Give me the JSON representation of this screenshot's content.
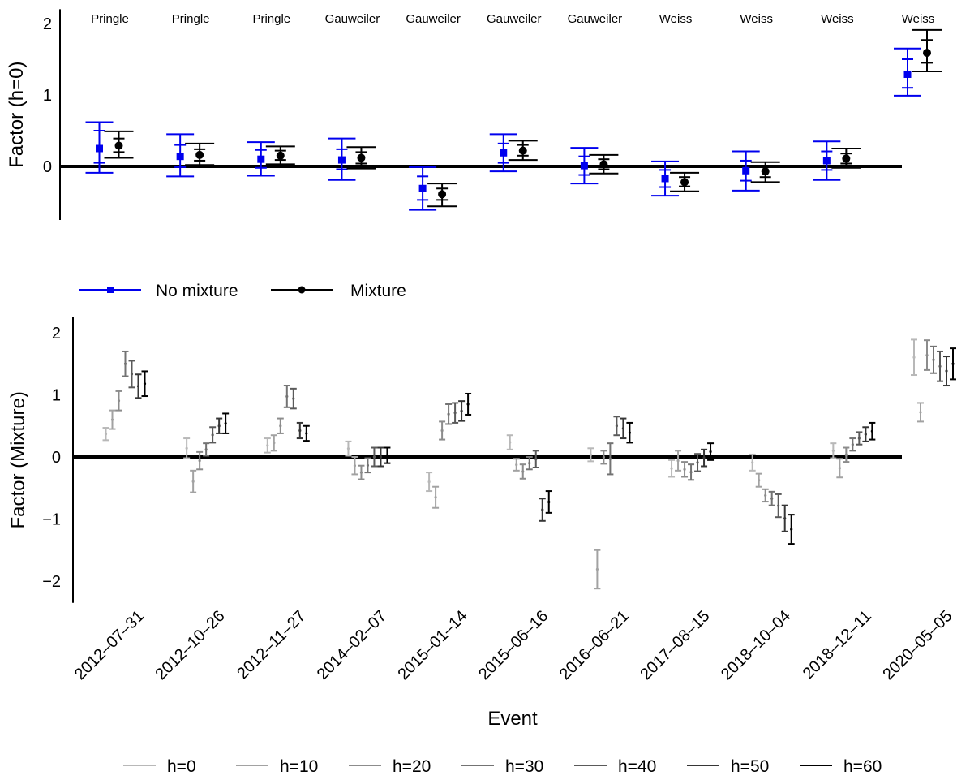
{
  "chart_data": [
    {
      "type": "errorbar",
      "ylabel": "Factor (h=0)",
      "ylim": [
        -0.75,
        2.2
      ],
      "yticks": [
        0,
        1,
        2
      ],
      "annotations": [
        "Pringle",
        "Pringle",
        "Pringle",
        "Gauweiler",
        "Gauweiler",
        "Gauweiler",
        "Gauweiler",
        "Weiss",
        "Weiss",
        "Weiss",
        "Weiss"
      ],
      "legend_placement": "bottom",
      "series": [
        {
          "name": "No mixture",
          "color": "#0000ee",
          "marker": "square",
          "points": [
            {
              "y": 0.25,
              "lo95": -0.09,
              "hi95": 0.62,
              "lo68": 0.05,
              "hi68": 0.5
            },
            {
              "y": 0.14,
              "lo95": -0.14,
              "hi95": 0.45,
              "lo68": -0.01,
              "hi68": 0.3
            },
            {
              "y": 0.1,
              "lo95": -0.13,
              "hi95": 0.34,
              "lo68": -0.02,
              "hi68": 0.23
            },
            {
              "y": 0.09,
              "lo95": -0.19,
              "hi95": 0.39,
              "lo68": -0.04,
              "hi68": 0.24
            },
            {
              "y": -0.31,
              "lo95": -0.61,
              "hi95": -0.01,
              "lo68": -0.47,
              "hi68": -0.14
            },
            {
              "y": 0.19,
              "lo95": -0.07,
              "hi95": 0.45,
              "lo68": 0.05,
              "hi68": 0.32
            },
            {
              "y": 0.01,
              "lo95": -0.24,
              "hi95": 0.26,
              "lo68": -0.12,
              "hi68": 0.14
            },
            {
              "y": -0.17,
              "lo95": -0.41,
              "hi95": 0.07,
              "lo68": -0.29,
              "hi68": -0.05
            },
            {
              "y": -0.06,
              "lo95": -0.34,
              "hi95": 0.21,
              "lo68": -0.2,
              "hi68": 0.08
            },
            {
              "y": 0.08,
              "lo95": -0.19,
              "hi95": 0.35,
              "lo68": -0.05,
              "hi68": 0.21
            },
            {
              "y": 1.29,
              "lo95": 0.99,
              "hi95": 1.65,
              "lo68": 1.1,
              "hi68": 1.5
            }
          ]
        },
        {
          "name": "Mixture",
          "color": "#000000",
          "marker": "circle",
          "points": [
            {
              "y": 0.29,
              "lo95": 0.12,
              "hi95": 0.49,
              "lo68": 0.2,
              "hi68": 0.39
            },
            {
              "y": 0.16,
              "lo95": 0.02,
              "hi95": 0.32,
              "lo68": 0.08,
              "hi68": 0.24
            },
            {
              "y": 0.15,
              "lo95": 0.03,
              "hi95": 0.28,
              "lo68": 0.09,
              "hi68": 0.22
            },
            {
              "y": 0.12,
              "lo95": -0.03,
              "hi95": 0.27,
              "lo68": 0.04,
              "hi68": 0.2
            },
            {
              "y": -0.39,
              "lo95": -0.56,
              "hi95": -0.24,
              "lo68": -0.47,
              "hi68": -0.31
            },
            {
              "y": 0.22,
              "lo95": 0.09,
              "hi95": 0.36,
              "lo68": 0.15,
              "hi68": 0.3
            },
            {
              "y": 0.03,
              "lo95": -0.1,
              "hi95": 0.16,
              "lo68": -0.04,
              "hi68": 0.1
            },
            {
              "y": -0.22,
              "lo95": -0.35,
              "hi95": -0.09,
              "lo68": -0.28,
              "hi68": -0.15
            },
            {
              "y": -0.07,
              "lo95": -0.22,
              "hi95": 0.06,
              "lo68": -0.15,
              "hi68": 0.0
            },
            {
              "y": 0.11,
              "lo95": -0.02,
              "hi95": 0.25,
              "lo68": 0.04,
              "hi68": 0.18
            },
            {
              "y": 1.59,
              "lo95": 1.33,
              "hi95": 1.91,
              "lo68": 1.45,
              "hi68": 1.77
            }
          ]
        }
      ]
    },
    {
      "type": "errorbar",
      "xlabel": "Event",
      "ylabel": "Factor (Mixture)",
      "ylim": [
        -2.35,
        2.25
      ],
      "yticks": [
        -2,
        -1,
        0,
        1,
        2
      ],
      "categories": [
        "2012-07-31",
        "2012-10-26",
        "2012-11-27",
        "2014-02-07",
        "2015-01-14",
        "2015-06-16",
        "2016-06-21",
        "2017-08-15",
        "2018-10-04",
        "2018-12-11",
        "2020-05-05"
      ],
      "legend_placement": "bottom",
      "series": [
        {
          "name": "h=0",
          "color": "#b8b8b8",
          "intervals": [
            [
              0.27,
              0.47
            ],
            [
              -0.02,
              0.3
            ],
            [
              0.07,
              0.3
            ],
            [
              0.02,
              0.25
            ],
            [
              -0.55,
              -0.25
            ],
            [
              0.12,
              0.35
            ],
            [
              -0.07,
              0.14
            ],
            [
              -0.32,
              -0.05
            ],
            [
              -0.22,
              0.04
            ],
            [
              -0.02,
              0.22
            ],
            [
              1.32,
              1.89
            ]
          ]
        },
        {
          "name": "h=10",
          "color": "#a2a2a2",
          "intervals": [
            [
              0.45,
              0.75
            ],
            [
              -0.57,
              -0.22
            ],
            [
              0.1,
              0.35
            ],
            [
              -0.28,
              0.0
            ],
            [
              -0.82,
              -0.48
            ],
            [
              -0.22,
              -0.03
            ],
            [
              -2.12,
              -1.5
            ],
            [
              -0.22,
              0.1
            ],
            [
              -0.48,
              -0.27
            ],
            [
              -0.33,
              -0.03
            ],
            [
              0.57,
              0.87
            ]
          ]
        },
        {
          "name": "h=20",
          "color": "#8c8c8c",
          "intervals": [
            [
              0.75,
              1.06
            ],
            [
              -0.2,
              0.08
            ],
            [
              0.38,
              0.62
            ],
            [
              -0.36,
              -0.14
            ],
            [
              0.28,
              0.57
            ],
            [
              -0.35,
              -0.12
            ],
            [
              -0.11,
              0.1
            ],
            [
              -0.32,
              -0.08
            ],
            [
              -0.72,
              -0.52
            ],
            [
              -0.08,
              0.15
            ],
            [
              1.4,
              1.88
            ]
          ]
        },
        {
          "name": "h=30",
          "color": "#737373",
          "intervals": [
            [
              1.3,
              1.7
            ],
            [
              0.02,
              0.22
            ],
            [
              0.8,
              1.15
            ],
            [
              -0.25,
              -0.02
            ],
            [
              0.53,
              0.85
            ],
            [
              -0.2,
              0.0
            ],
            [
              -0.28,
              0.22
            ],
            [
              -0.37,
              -0.12
            ],
            [
              -0.78,
              -0.56
            ],
            [
              0.1,
              0.3
            ],
            [
              1.35,
              1.78
            ]
          ]
        },
        {
          "name": "h=40",
          "color": "#5a5a5a",
          "intervals": [
            [
              1.12,
              1.55
            ],
            [
              0.23,
              0.48
            ],
            [
              0.78,
              1.1
            ],
            [
              -0.15,
              0.15
            ],
            [
              0.55,
              0.87
            ],
            [
              -0.17,
              0.1
            ],
            [
              0.35,
              0.65
            ],
            [
              -0.23,
              0.05
            ],
            [
              -0.97,
              -0.6
            ],
            [
              0.2,
              0.4
            ],
            [
              1.22,
              1.7
            ]
          ]
        },
        {
          "name": "h=50",
          "color": "#363636",
          "intervals": [
            [
              0.95,
              1.33
            ],
            [
              0.38,
              0.62
            ],
            [
              0.3,
              0.55
            ],
            [
              -0.15,
              0.15
            ],
            [
              0.58,
              0.9
            ],
            [
              -1.03,
              -0.67
            ],
            [
              0.3,
              0.62
            ],
            [
              -0.15,
              0.12
            ],
            [
              -1.2,
              -0.78
            ],
            [
              0.25,
              0.48
            ],
            [
              1.15,
              1.62
            ]
          ]
        },
        {
          "name": "h=60",
          "color": "#000000",
          "intervals": [
            [
              0.98,
              1.38
            ],
            [
              0.38,
              0.7
            ],
            [
              0.26,
              0.5
            ],
            [
              -0.1,
              0.15
            ],
            [
              0.68,
              1.02
            ],
            [
              -0.9,
              -0.55
            ],
            [
              0.23,
              0.55
            ],
            [
              -0.05,
              0.22
            ],
            [
              -1.4,
              -0.93
            ],
            [
              0.28,
              0.55
            ],
            [
              1.25,
              1.75
            ]
          ]
        }
      ]
    }
  ]
}
